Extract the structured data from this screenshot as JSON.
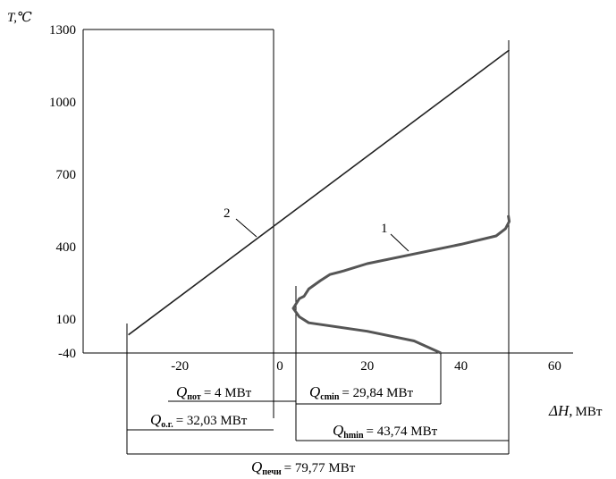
{
  "chart_data": {
    "type": "line",
    "y_label": "T,℃",
    "x_label_symbol": "ΔH,",
    "x_label_unit": "МВт",
    "x_ticks": [
      "-20",
      "0",
      "20",
      "40",
      "60"
    ],
    "x_tick_values": [
      -20,
      0,
      20,
      40,
      60
    ],
    "y_ticks": [
      "-40",
      "100",
      "400",
      "700",
      "1000",
      "1300"
    ],
    "y_tick_values": [
      -40,
      100,
      400,
      700,
      1000,
      1300
    ],
    "xlim": [
      -40,
      63
    ],
    "ylim": [
      -40,
      1300
    ],
    "series": [
      {
        "name": "1",
        "color": "#555555",
        "points": [
          [
            35.7,
            -40
          ],
          [
            30,
            10
          ],
          [
            20,
            50
          ],
          [
            7.5,
            85
          ],
          [
            5.5,
            110
          ],
          [
            4.2,
            145
          ],
          [
            5.5,
            185
          ],
          [
            6.5,
            195
          ],
          [
            7.5,
            225
          ],
          [
            10,
            260
          ],
          [
            12,
            285
          ],
          [
            15,
            300
          ],
          [
            20,
            330
          ],
          [
            30,
            370
          ],
          [
            40,
            410
          ],
          [
            47.5,
            445
          ],
          [
            49.5,
            475
          ],
          [
            50.3,
            505
          ],
          [
            50.1,
            530
          ]
        ]
      },
      {
        "name": "2",
        "color": "#222222",
        "points": [
          [
            -31,
            35
          ],
          [
            50.3,
            1215
          ]
        ]
      }
    ],
    "curve_labels": [
      "1",
      "2"
    ]
  },
  "annotations": {
    "q_pot": {
      "symbol": "Q",
      "sub": "пот",
      "value": "= 4 МВт"
    },
    "q_cmin": {
      "symbol": "Q",
      "sub": "cmin",
      "value": "= 29,84 МВт"
    },
    "q_og": {
      "symbol": "Q",
      "sub": "о.г.",
      "value": "= 32,03 МВт"
    },
    "q_hmin": {
      "symbol": "Q",
      "sub": "hmin",
      "value": "= 43,74 МВт"
    },
    "q_pechi": {
      "symbol": "Q",
      "sub": "печи",
      "value": "= 79,77 МВт"
    }
  }
}
